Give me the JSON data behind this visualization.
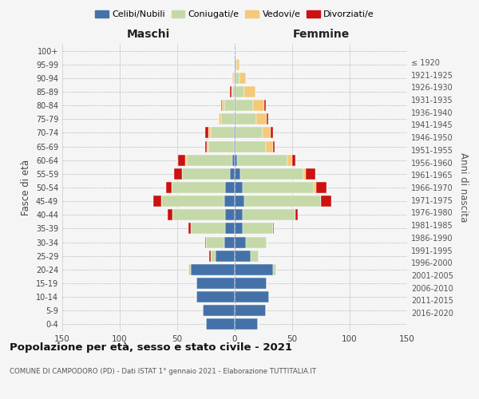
{
  "age_groups": [
    "0-4",
    "5-9",
    "10-14",
    "15-19",
    "20-24",
    "25-29",
    "30-34",
    "35-39",
    "40-44",
    "45-49",
    "50-54",
    "55-59",
    "60-64",
    "65-69",
    "70-74",
    "75-79",
    "80-84",
    "85-89",
    "90-94",
    "95-99",
    "100+"
  ],
  "birth_years": [
    "2016-2020",
    "2011-2015",
    "2006-2010",
    "2001-2005",
    "1996-2000",
    "1991-1995",
    "1986-1990",
    "1981-1985",
    "1976-1980",
    "1971-1975",
    "1966-1970",
    "1961-1965",
    "1956-1960",
    "1951-1955",
    "1946-1950",
    "1941-1945",
    "1936-1940",
    "1931-1935",
    "1926-1930",
    "1921-1925",
    "≤ 1920"
  ],
  "male": {
    "celibe": [
      25,
      28,
      33,
      33,
      38,
      17,
      9,
      8,
      8,
      9,
      8,
      4,
      2,
      1,
      1,
      0,
      0,
      0,
      0,
      0,
      0
    ],
    "coniugato": [
      0,
      0,
      0,
      0,
      2,
      4,
      16,
      30,
      46,
      55,
      47,
      42,
      40,
      22,
      20,
      12,
      9,
      2,
      1,
      0,
      0
    ],
    "vedovo": [
      0,
      0,
      0,
      0,
      0,
      0,
      0,
      0,
      0,
      0,
      0,
      0,
      1,
      1,
      2,
      2,
      2,
      1,
      1,
      0,
      0
    ],
    "divorziato": [
      0,
      0,
      0,
      0,
      0,
      1,
      1,
      2,
      4,
      7,
      5,
      7,
      6,
      2,
      3,
      0,
      1,
      1,
      0,
      0,
      0
    ]
  },
  "female": {
    "nubile": [
      20,
      27,
      30,
      28,
      33,
      14,
      10,
      7,
      7,
      8,
      7,
      5,
      2,
      1,
      1,
      1,
      1,
      1,
      1,
      1,
      0
    ],
    "coniugata": [
      0,
      0,
      0,
      0,
      3,
      7,
      18,
      26,
      46,
      67,
      62,
      55,
      44,
      26,
      23,
      18,
      15,
      7,
      3,
      1,
      0
    ],
    "vedova": [
      0,
      0,
      0,
      0,
      0,
      0,
      0,
      0,
      0,
      0,
      2,
      2,
      4,
      6,
      7,
      9,
      10,
      10,
      6,
      2,
      1
    ],
    "divorziata": [
      0,
      0,
      0,
      0,
      0,
      0,
      0,
      1,
      2,
      9,
      9,
      8,
      3,
      2,
      2,
      1,
      1,
      0,
      0,
      0,
      0
    ]
  },
  "colors": {
    "celibe": "#4472a8",
    "coniugato": "#c5d9a8",
    "vedovo": "#f5c97a",
    "divorziato": "#cc1111"
  },
  "xlim": 150,
  "title": "Popolazione per età, sesso e stato civile - 2021",
  "subtitle": "COMUNE DI CAMPODORO (PD) - Dati ISTAT 1° gennaio 2021 - Elaborazione TUTTITALIA.IT",
  "ylabel": "Fasce di età",
  "ylabel_right": "Anni di nascita",
  "xlabel_left": "Maschi",
  "xlabel_right": "Femmine",
  "background_color": "#f5f5f5"
}
